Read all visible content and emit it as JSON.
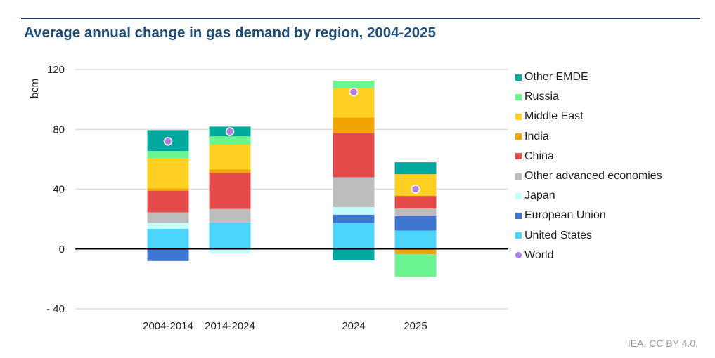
{
  "title": "Average annual change in gas demand by region, 2004-2025",
  "source": "IEA. CC BY 4.0.",
  "chart_data": {
    "type": "bar",
    "stacked": true,
    "title": "Average annual change in gas demand by region, 2004-2025",
    "xlabel": "",
    "ylabel": "bcm",
    "ylim": [
      -40,
      120
    ],
    "yticks": [
      120,
      80,
      40,
      0,
      -40
    ],
    "ytick_labels": [
      "120",
      "80",
      "40",
      "0",
      "- 40"
    ],
    "grid": true,
    "legend_position": "right",
    "categories": [
      "2004-2014",
      "2014-2024",
      "2024",
      "2025"
    ],
    "series": [
      {
        "name": "United States",
        "color": "#4dd4fd",
        "values": [
          13.5,
          17.8,
          17.5,
          12.3
        ]
      },
      {
        "name": "European Union",
        "color": "#3f77d0",
        "values": [
          -8,
          0,
          5.5,
          9.7
        ]
      },
      {
        "name": "Japan",
        "color": "#c2fcfc",
        "values": [
          4,
          -3,
          5,
          0
        ]
      },
      {
        "name": "Other advanced economies",
        "color": "#bdbdbd",
        "values": [
          7,
          9,
          20,
          5
        ]
      },
      {
        "name": "China",
        "color": "#e34a4a",
        "values": [
          14.5,
          24,
          29.5,
          8.5
        ]
      },
      {
        "name": "India",
        "color": "#f0a500",
        "values": [
          1.5,
          2.5,
          10.5,
          -3.5
        ]
      },
      {
        "name": "Middle East",
        "color": "#ffd022",
        "values": [
          20,
          16.5,
          19.5,
          14.5
        ]
      },
      {
        "name": "Russia",
        "color": "#6af591",
        "values": [
          5,
          5.5,
          5,
          -15
        ]
      },
      {
        "name": "Other EMDE",
        "color": "#00a99d",
        "values": [
          14,
          6.5,
          -7.5,
          8
        ]
      }
    ],
    "points": {
      "name": "World",
      "color": "#b07fe8",
      "values": [
        72,
        78.5,
        105,
        40
      ]
    }
  }
}
